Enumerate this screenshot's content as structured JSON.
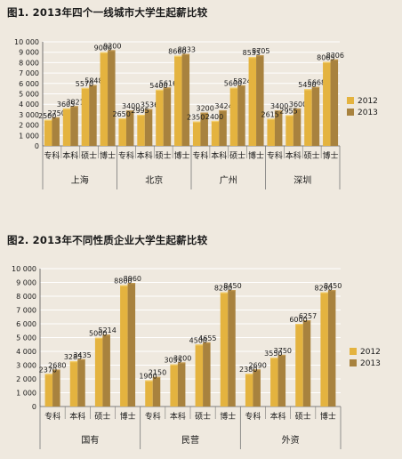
{
  "chart_data": [
    {
      "type": "bar",
      "title": "图1. 2013年四个一线城市大学生起薪比较",
      "ylim": [
        0,
        10000
      ],
      "yticks": [
        "0",
        "1 000",
        "2 000",
        "3 000",
        "4 000",
        "5 000",
        "6 000",
        "7 000",
        "8 000",
        "9 000",
        "10 000"
      ],
      "legend_position": "right",
      "groups": [
        "上海",
        "北京",
        "广州",
        "深圳"
      ],
      "categories": [
        "专科",
        "本科",
        "硕士",
        "博士"
      ],
      "series": [
        {
          "name": "2012",
          "color": "#e4b33f",
          "values": [
            [
              2500,
              3605,
              5570,
              9000
            ],
            [
              2650,
              2995,
              5400,
              8660
            ],
            [
              2350,
              2400,
              5600,
              8535
            ],
            [
              2615,
              2955,
              5450,
              8065
            ]
          ]
        },
        {
          "name": "2013",
          "color": "#a8823e",
          "values": [
            [
              2750,
              3821,
              5848,
              9200
            ],
            [
              3400,
              3536,
              5616,
              8833
            ],
            [
              3200,
              3424,
              5824,
              8705
            ],
            [
              3400,
              3600,
              5668,
              8306
            ]
          ]
        }
      ],
      "labels": [
        [
          [
            "2500",
            "2750"
          ],
          [
            "3605",
            "3821"
          ],
          [
            "5570",
            "5848"
          ],
          [
            "9000",
            "9200"
          ]
        ],
        [
          [
            "2650",
            "3400"
          ],
          [
            "2995",
            "3536"
          ],
          [
            "5400",
            "5616"
          ],
          [
            "8660",
            "8833"
          ]
        ],
        [
          [
            "2350",
            "3200"
          ],
          [
            "2400",
            "3424"
          ],
          [
            "5600",
            "5824"
          ],
          [
            "8535",
            "8705"
          ]
        ],
        [
          [
            "2615",
            "3400"
          ],
          [
            "2955",
            "3600"
          ],
          [
            "5450",
            "5668"
          ],
          [
            "8065",
            "8306"
          ]
        ]
      ]
    },
    {
      "type": "bar",
      "title": "图2. 2013年不同性质企业大学生起薪比较",
      "ylim": [
        0,
        10000
      ],
      "yticks": [
        "0",
        "1 000",
        "2 000",
        "3 000",
        "4 000",
        "5 000",
        "6 000",
        "7 000",
        "8 000",
        "9 000",
        "10 000"
      ],
      "legend_position": "right",
      "groups": [
        "国有",
        "民营",
        "外资"
      ],
      "categories": [
        "专科",
        "本科",
        "硕士",
        "博士"
      ],
      "series": [
        {
          "name": "2012",
          "color": "#e4b33f",
          "values": [
            [
              2370,
              3285,
              5000,
              8800
            ],
            [
              1900,
              3055,
              4500,
              8280
            ],
            [
              2380,
              3550,
              6000,
              8290
            ]
          ]
        },
        {
          "name": "2013",
          "color": "#a8823e",
          "values": [
            [
              2680,
              3435,
              5214,
              8960
            ],
            [
              2150,
              3200,
              4655,
              8450
            ],
            [
              2690,
              3750,
              6257,
              8450
            ]
          ]
        }
      ],
      "labels": [
        [
          [
            "2370",
            "2680"
          ],
          [
            "3285",
            "3435"
          ],
          [
            "5000",
            "5214"
          ],
          [
            "8800",
            "8960"
          ]
        ],
        [
          [
            "1900",
            "2150"
          ],
          [
            "3055",
            "3200"
          ],
          [
            "4500",
            "4655"
          ],
          [
            "8280",
            "8450"
          ]
        ],
        [
          [
            "2380",
            "2690"
          ],
          [
            "3550",
            "3750"
          ],
          [
            "6000",
            "6257"
          ],
          [
            "8290",
            "8450"
          ]
        ]
      ]
    }
  ]
}
